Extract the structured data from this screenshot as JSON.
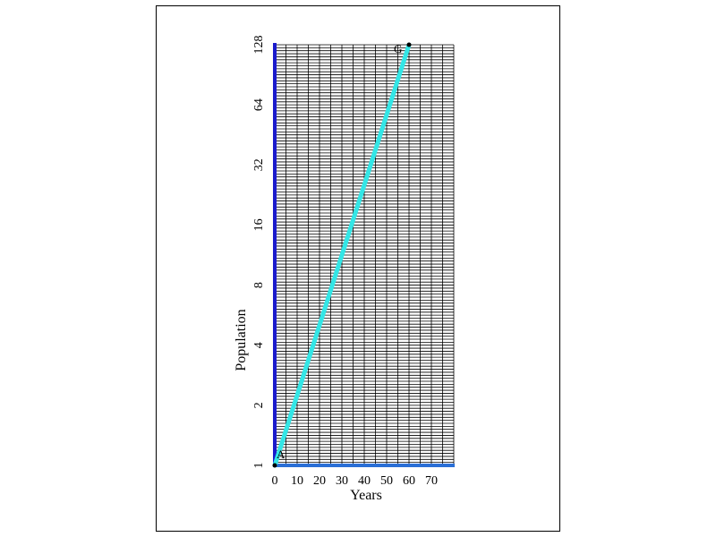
{
  "chart_data": {
    "type": "line",
    "xlabel": "Years",
    "ylabel": "Population",
    "x_ticks": [
      0,
      10,
      20,
      30,
      40,
      50,
      60,
      70
    ],
    "y_tick_labels": [
      "1",
      "2",
      "4",
      "8",
      "16",
      "32",
      "64",
      "128"
    ],
    "y_tick_values": [
      1,
      2,
      4,
      8,
      16,
      32,
      64,
      128
    ],
    "xlim": [
      0,
      80
    ],
    "ylim": [
      1,
      128
    ],
    "y_scale": "log2",
    "grid": true,
    "axis_color": "#1a1acc",
    "x_axis_color": "#2a6fd6",
    "line_color": "#33e6e6",
    "series": [
      {
        "x": [
          0,
          60
        ],
        "y": [
          1,
          128
        ],
        "point_labels": [
          "A",
          "G"
        ]
      }
    ]
  }
}
